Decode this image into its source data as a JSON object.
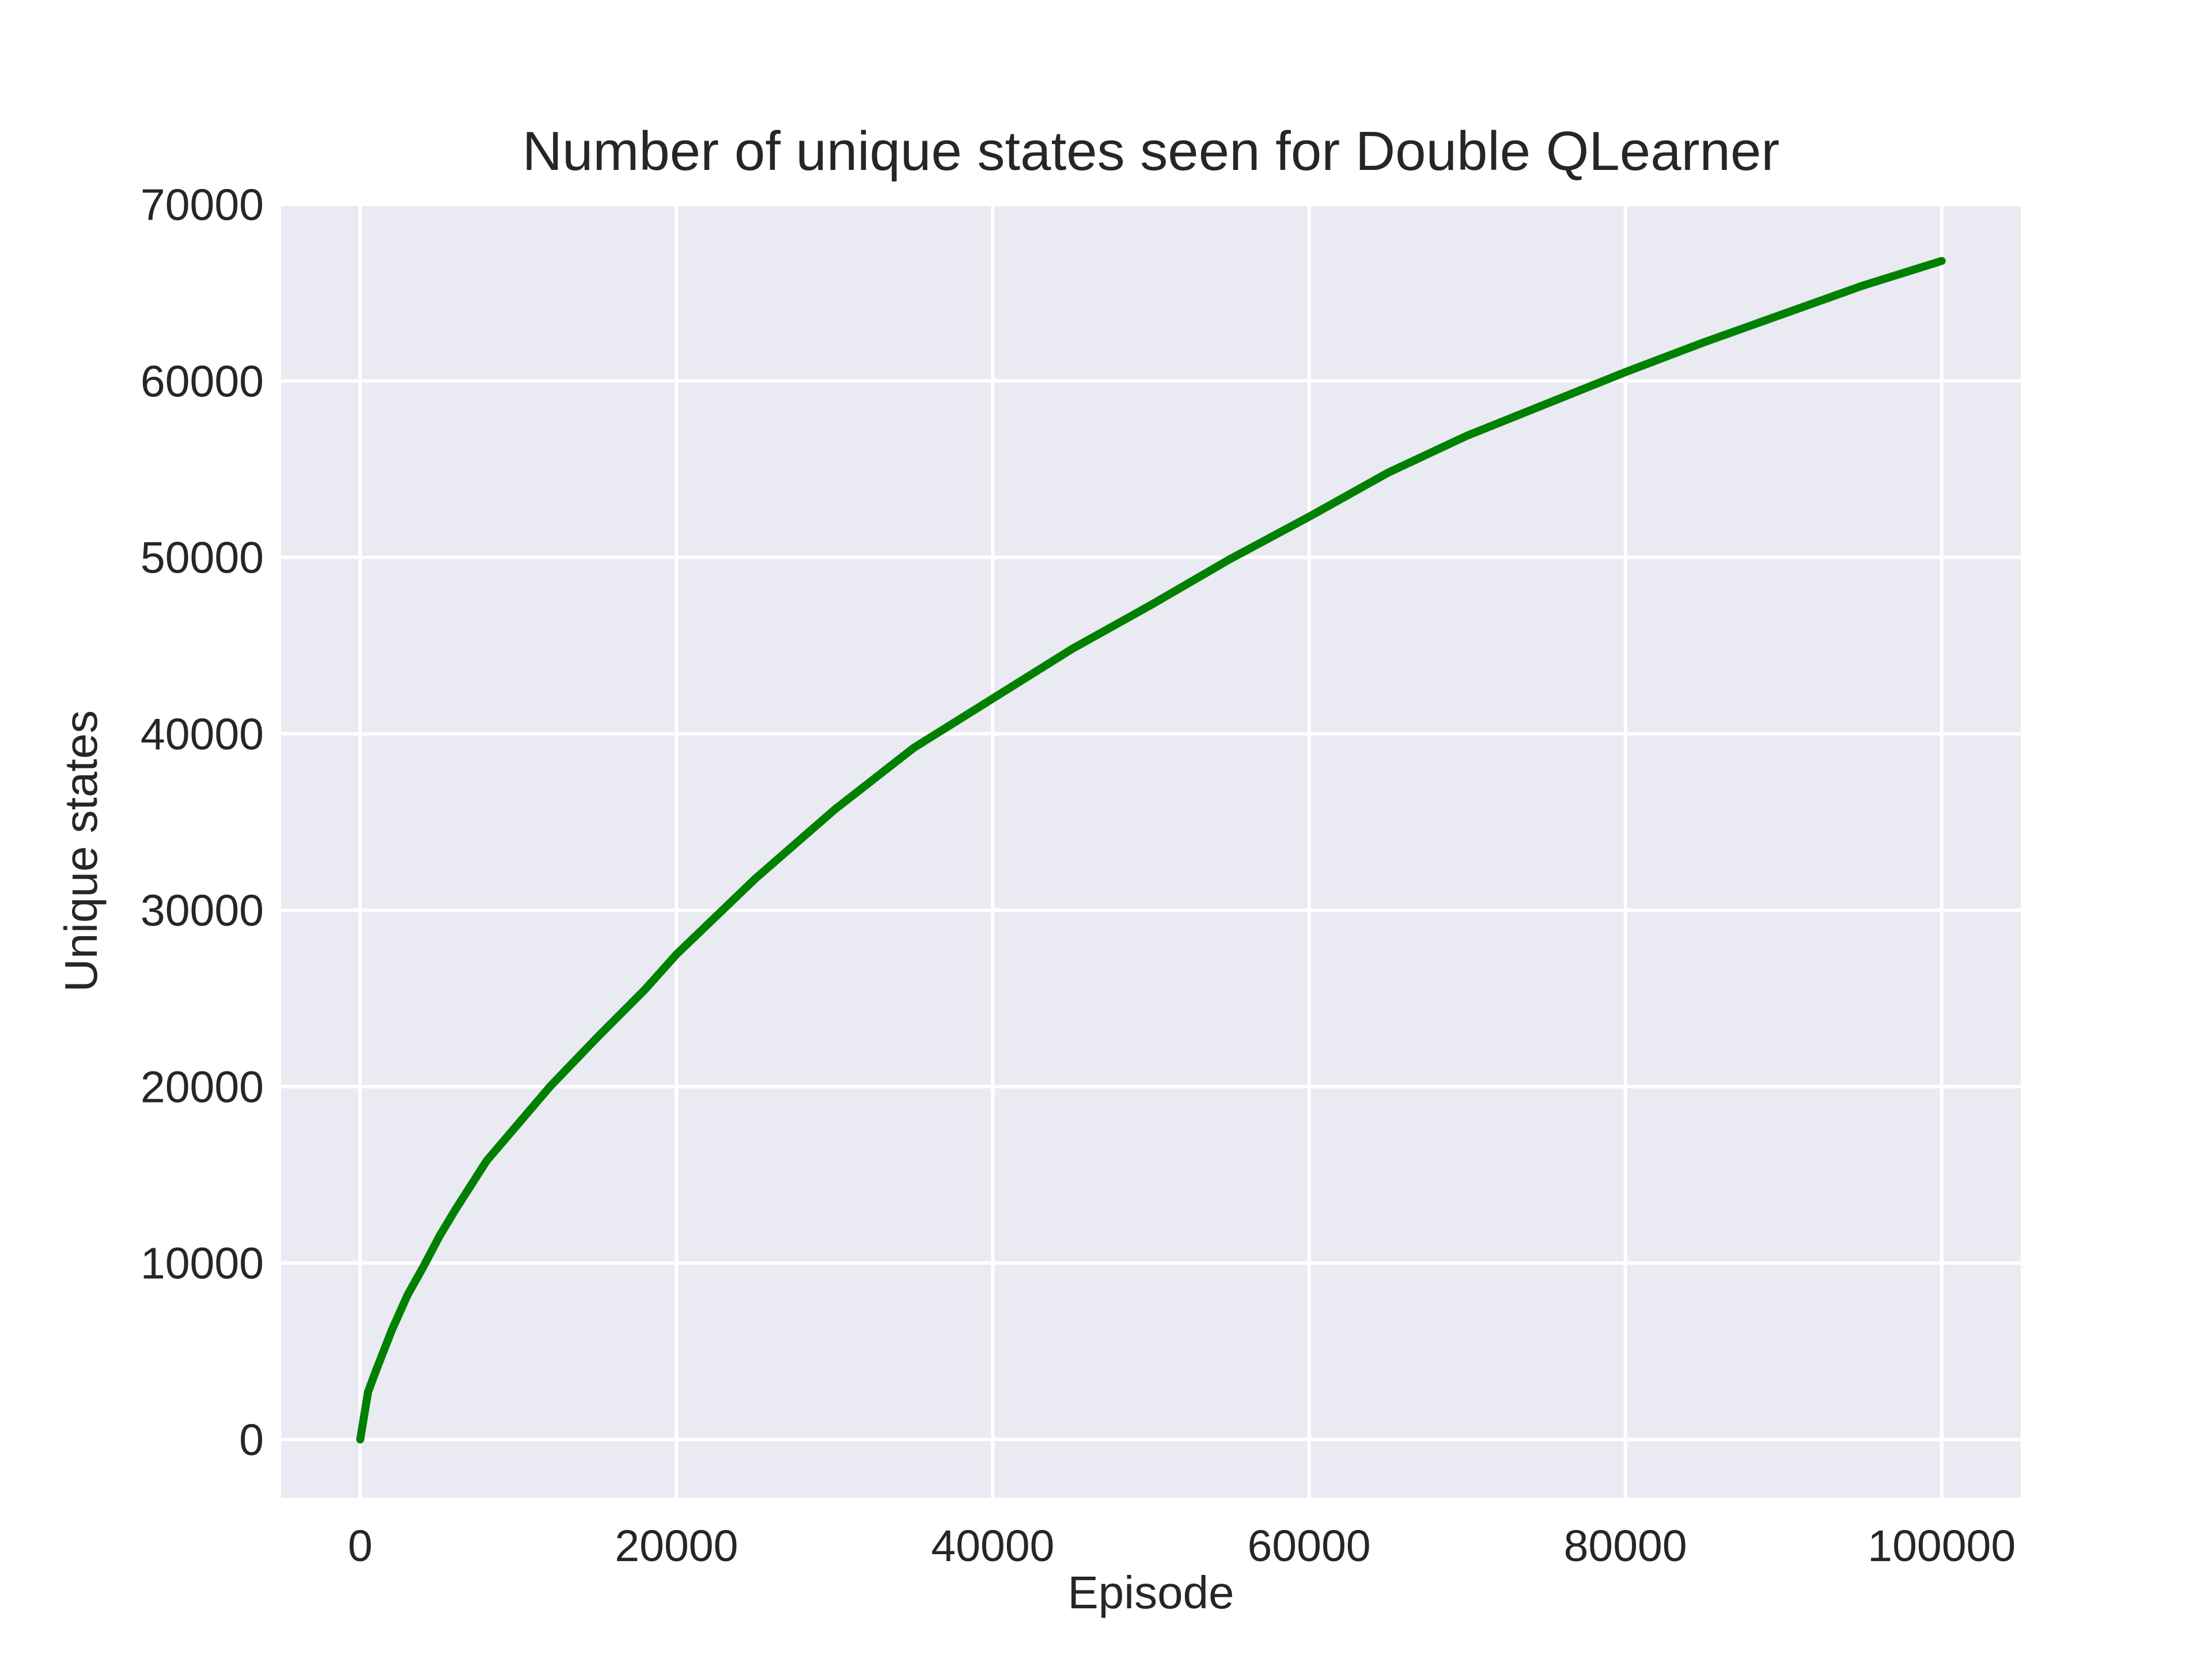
{
  "chart_data": {
    "type": "line",
    "title": "Number of unique states seen for Double QLearner",
    "xlabel": "Episode",
    "ylabel": "Unique states",
    "xlim": [
      -5000,
      105000
    ],
    "ylim": [
      -3300,
      70000
    ],
    "x_ticks": [
      0,
      20000,
      40000,
      60000,
      80000,
      100000
    ],
    "x_tick_labels": [
      "0",
      "20000",
      "40000",
      "60000",
      "80000",
      "100000"
    ],
    "y_ticks": [
      0,
      10000,
      20000,
      30000,
      40000,
      50000,
      60000,
      70000
    ],
    "y_tick_labels": [
      "0",
      "10000",
      "20000",
      "30000",
      "40000",
      "50000",
      "60000",
      "70000"
    ],
    "grid": true,
    "background_color": "#eaeaf2",
    "grid_color": "#ffffff",
    "series": [
      {
        "color": "#008000",
        "x": [
          0,
          500,
          1000,
          2000,
          3000,
          4000,
          5000,
          6000,
          8000,
          10000,
          12000,
          15000,
          18000,
          20000,
          25000,
          30000,
          35000,
          40000,
          45000,
          50000,
          55000,
          60000,
          65000,
          70000,
          75000,
          80000,
          85000,
          90000,
          95000,
          100000
        ],
        "y": [
          0,
          2700,
          3900,
          6200,
          8200,
          9800,
          11500,
          13000,
          15800,
          17900,
          20000,
          22800,
          25500,
          27500,
          31800,
          35700,
          39200,
          42000,
          44800,
          47300,
          49900,
          52300,
          54800,
          56900,
          58700,
          60500,
          62200,
          63800,
          65400,
          66800
        ]
      }
    ]
  }
}
